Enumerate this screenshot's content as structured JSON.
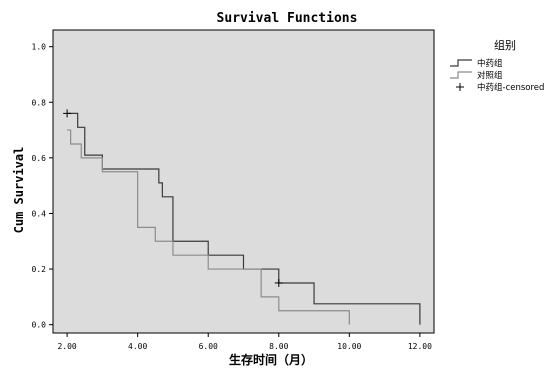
{
  "chart_data": {
    "type": "line",
    "title": "Survival Functions",
    "xlabel": "生存时间（月）",
    "ylabel": "Cum Survival",
    "xlim": [
      1.6,
      12.4
    ],
    "ylim": [
      -0.03,
      1.06
    ],
    "x_ticks": [
      "2.00",
      "4.00",
      "6.00",
      "8.00",
      "10.00",
      "12.00"
    ],
    "y_ticks": [
      "0.0",
      "0.2",
      "0.4",
      "0.6",
      "0.8",
      "1.0"
    ],
    "grid": false,
    "legend": {
      "title": "组别",
      "placement": "right",
      "entries": [
        "中药组",
        "对照组",
        "中药组-censored"
      ]
    },
    "series": [
      {
        "name": "中药组",
        "color": "#3a3a3a",
        "x": [
          2.0,
          2.3,
          2.5,
          3.0,
          4.6,
          4.7,
          4.8,
          5.0,
          6.0,
          7.0,
          8.0,
          9.0,
          12.0
        ],
        "y": [
          0.76,
          0.71,
          0.61,
          0.56,
          0.51,
          0.46,
          0.46,
          0.3,
          0.25,
          0.2,
          0.15,
          0.075,
          0.0
        ]
      },
      {
        "name": "对照组",
        "color": "#8c8c8c",
        "x": [
          2.0,
          2.1,
          2.4,
          3.0,
          4.0,
          4.5,
          5.0,
          6.0,
          7.5,
          8.0,
          10.0
        ],
        "y": [
          0.7,
          0.65,
          0.6,
          0.55,
          0.35,
          0.3,
          0.25,
          0.2,
          0.1,
          0.05,
          0.0
        ]
      }
    ],
    "censored": {
      "name": "中药组-censored",
      "x": [
        2.0,
        8.0
      ],
      "y": [
        0.76,
        0.15
      ]
    }
  },
  "colors": {
    "plot_background": "#dcdcdc",
    "axis": "#000000"
  }
}
